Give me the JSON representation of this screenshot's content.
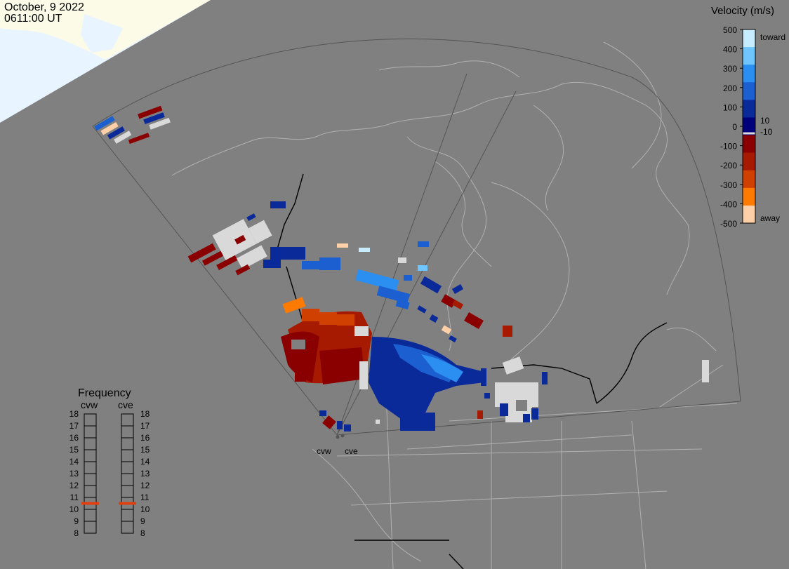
{
  "header": {
    "date": "October, 9 2022",
    "time": "0611:00 UT"
  },
  "colorbar": {
    "title": "Velocity (m/s)",
    "ticks": [
      "500",
      "400",
      "300",
      "200",
      "100",
      "0",
      "-100",
      "-200",
      "-300",
      "-400",
      "-500"
    ],
    "label_toward": "toward",
    "label_away": "away",
    "label_pos": "10",
    "label_neg": "-10",
    "colors": [
      "#c8ecff",
      "#6fc6ff",
      "#2a8ff0",
      "#1b5fd0",
      "#0a2a9a",
      "#00007a",
      "#8a0000",
      "#a51a00",
      "#d04000",
      "#ff7a00",
      "#ffd0a8"
    ]
  },
  "radars": {
    "west": "cvw",
    "east": "cve"
  },
  "frequency": {
    "title": "Frequency",
    "col_west": "cvw",
    "col_east": "cve",
    "levels": [
      "18",
      "17",
      "16",
      "15",
      "14",
      "13",
      "12",
      "11",
      "10",
      "9",
      "8"
    ],
    "cvw_mhz": 10.5,
    "cve_mhz": 10.5,
    "marker_color": "#e04010"
  },
  "colors": {
    "background": "#808080",
    "land_outline": "#b0b0b0",
    "coast_dark": "#000000",
    "daylight": "#fbfbe8",
    "daylight_sea": "#e8f4ff",
    "gs_scatter": "#d9d9d9"
  }
}
